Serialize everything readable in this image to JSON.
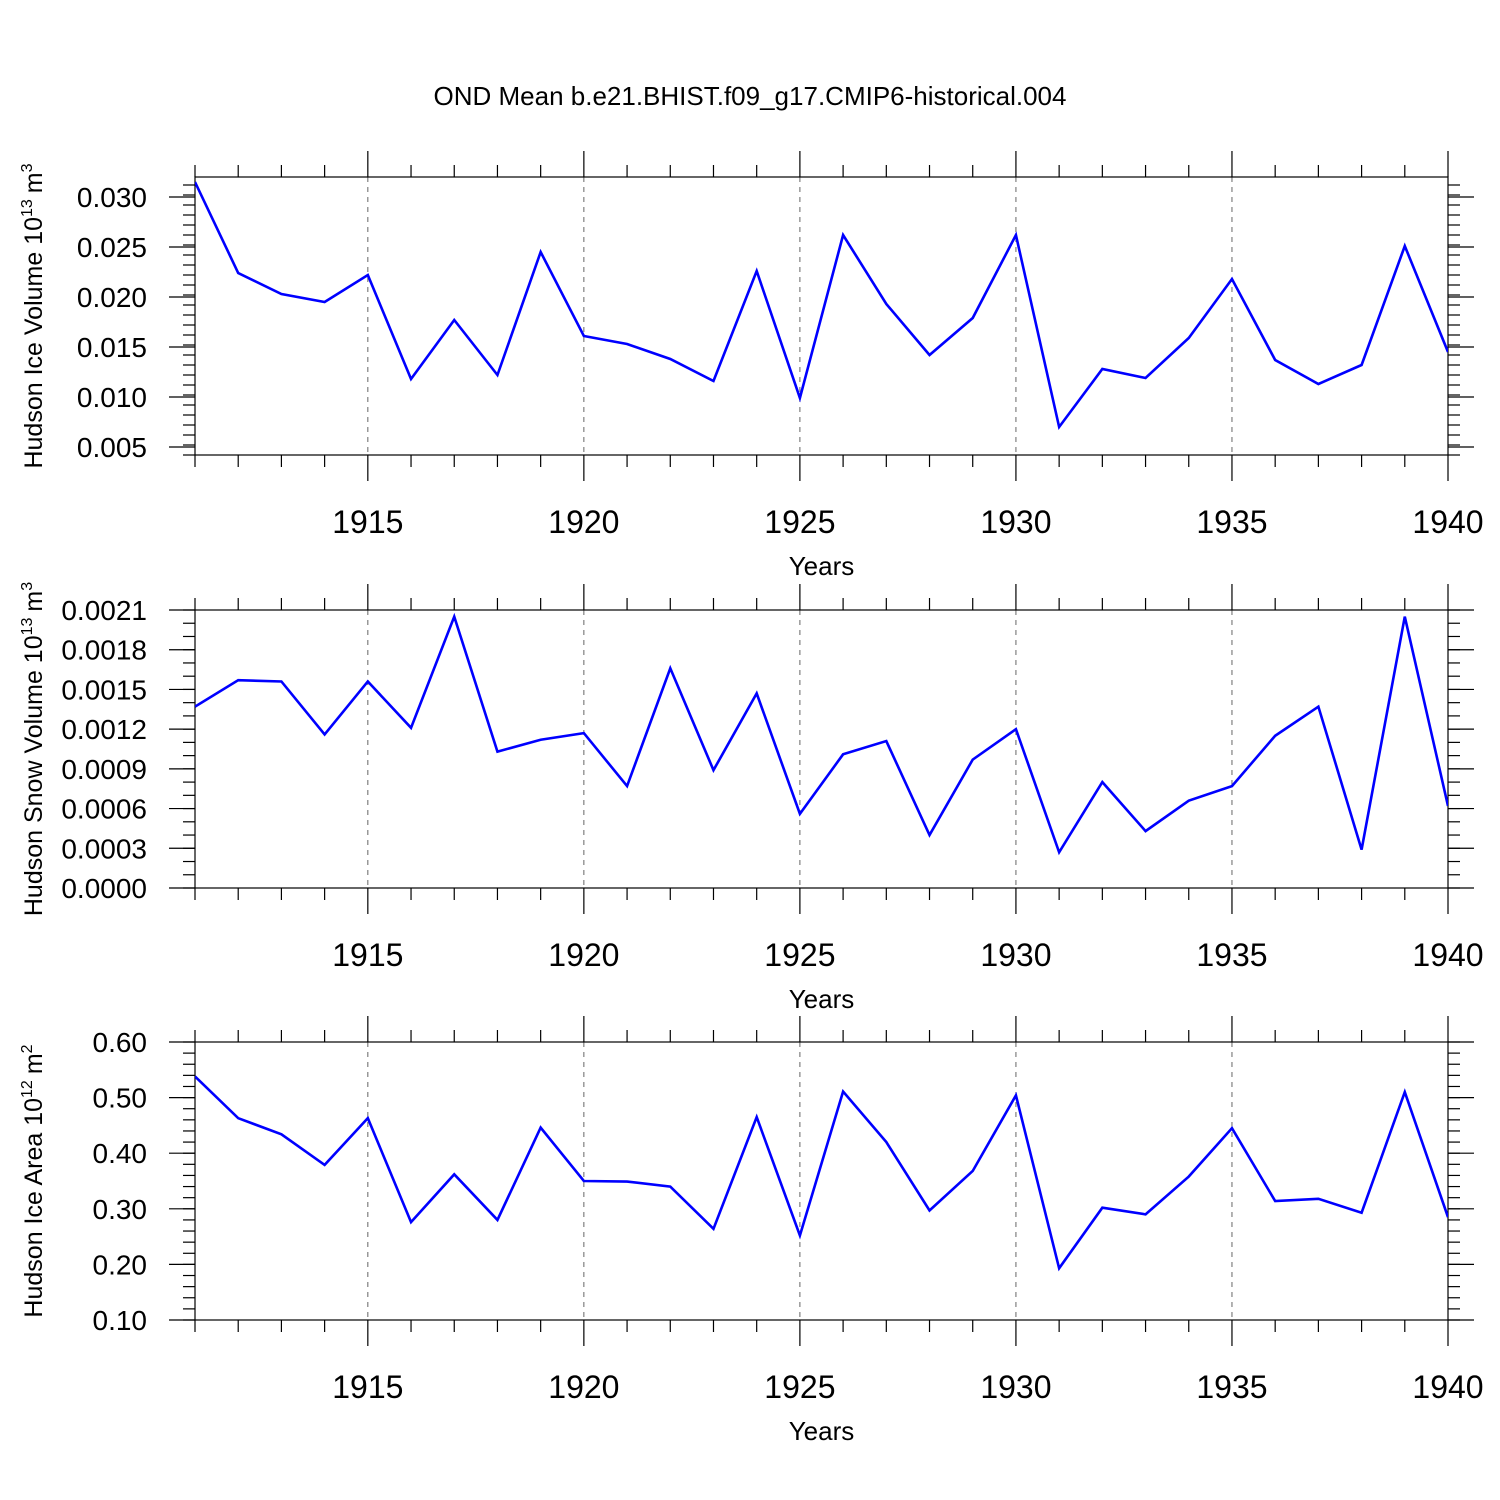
{
  "figure": {
    "title": "OND Mean b.e21.BHIST.f09_g17.CMIP6-historical.004",
    "line_color": "#0000ff"
  },
  "chart_data": [
    {
      "type": "line",
      "id": "ice-volume",
      "xlabel": "Years",
      "ylabel": "Hudson Ice Volume 10",
      "ylabel_exp": "13",
      "ylabel_unit": "m",
      "ylabel_unit_exp": "3",
      "xlim": [
        1911,
        1940
      ],
      "ylim": [
        0.0042,
        0.032
      ],
      "grid": "vertical dashed at major x ticks",
      "x_ticks": [
        1915,
        1920,
        1925,
        1930,
        1935,
        1940
      ],
      "y_ticks": [
        0.005,
        0.01,
        0.015,
        0.02,
        0.025,
        0.03
      ],
      "y_tick_labels": [
        "0.005",
        "0.010",
        "0.015",
        "0.020",
        "0.025",
        "0.030"
      ],
      "y_minor_step": 0.001,
      "x": [
        1911,
        1912,
        1913,
        1914,
        1915,
        1916,
        1917,
        1918,
        1919,
        1920,
        1921,
        1922,
        1923,
        1924,
        1925,
        1926,
        1927,
        1928,
        1929,
        1930,
        1931,
        1932,
        1933,
        1934,
        1935,
        1936,
        1937,
        1938,
        1939,
        1940
      ],
      "series": [
        {
          "name": "Hudson Ice Volume",
          "values": [
            0.0315,
            0.0224,
            0.0203,
            0.0195,
            0.0222,
            0.0118,
            0.0177,
            0.0122,
            0.0245,
            0.0161,
            0.0153,
            0.0138,
            0.0116,
            0.0226,
            0.0099,
            0.0262,
            0.0193,
            0.0142,
            0.0179,
            0.0262,
            0.007,
            0.0128,
            0.0119,
            0.0159,
            0.0218,
            0.0137,
            0.0113,
            0.0132,
            0.0251,
            0.0145
          ]
        }
      ]
    },
    {
      "type": "line",
      "id": "snow-volume",
      "xlabel": "Years",
      "ylabel": "Hudson Snow Volume 10",
      "ylabel_exp": "13",
      "ylabel_unit": "m",
      "ylabel_unit_exp": "3",
      "xlim": [
        1911,
        1940
      ],
      "ylim": [
        0.0,
        0.0021
      ],
      "grid": "vertical dashed at major x ticks",
      "x_ticks": [
        1915,
        1920,
        1925,
        1930,
        1935,
        1940
      ],
      "y_ticks": [
        0.0,
        0.0003,
        0.0006,
        0.0009,
        0.0012,
        0.0015,
        0.0018,
        0.0021
      ],
      "y_tick_labels": [
        "0.0000",
        "0.0003",
        "0.0006",
        "0.0009",
        "0.0012",
        "0.0015",
        "0.0018",
        "0.0021"
      ],
      "y_minor_step": 0.0001,
      "x": [
        1911,
        1912,
        1913,
        1914,
        1915,
        1916,
        1917,
        1918,
        1919,
        1920,
        1921,
        1922,
        1923,
        1924,
        1925,
        1926,
        1927,
        1928,
        1929,
        1930,
        1931,
        1932,
        1933,
        1934,
        1935,
        1936,
        1937,
        1938,
        1939,
        1940
      ],
      "series": [
        {
          "name": "Hudson Snow Volume",
          "values": [
            0.00137,
            0.00157,
            0.00156,
            0.00116,
            0.00156,
            0.00121,
            0.00205,
            0.00103,
            0.00112,
            0.00117,
            0.00077,
            0.00166,
            0.00089,
            0.00147,
            0.00056,
            0.00101,
            0.00111,
            0.0004,
            0.00097,
            0.0012,
            0.00027,
            0.0008,
            0.00043,
            0.00066,
            0.00077,
            0.00115,
            0.00137,
            0.00029,
            0.00205,
            0.00062
          ]
        }
      ]
    },
    {
      "type": "line",
      "id": "ice-area",
      "xlabel": "Years",
      "ylabel": "Hudson Ice Area 10",
      "ylabel_exp": "12",
      "ylabel_unit": "m",
      "ylabel_unit_exp": "2",
      "xlim": [
        1911,
        1940
      ],
      "ylim": [
        0.1,
        0.6
      ],
      "grid": "vertical dashed at major x ticks",
      "x_ticks": [
        1915,
        1920,
        1925,
        1930,
        1935,
        1940
      ],
      "y_ticks": [
        0.1,
        0.2,
        0.3,
        0.4,
        0.5,
        0.6
      ],
      "y_tick_labels": [
        "0.10",
        "0.20",
        "0.30",
        "0.40",
        "0.50",
        "0.60"
      ],
      "y_minor_step": 0.02,
      "x": [
        1911,
        1912,
        1913,
        1914,
        1915,
        1916,
        1917,
        1918,
        1919,
        1920,
        1921,
        1922,
        1923,
        1924,
        1925,
        1926,
        1927,
        1928,
        1929,
        1930,
        1931,
        1932,
        1933,
        1934,
        1935,
        1936,
        1937,
        1938,
        1939,
        1940
      ],
      "series": [
        {
          "name": "Hudson Ice Area",
          "values": [
            0.538,
            0.463,
            0.434,
            0.379,
            0.463,
            0.276,
            0.362,
            0.28,
            0.446,
            0.35,
            0.349,
            0.34,
            0.264,
            0.465,
            0.252,
            0.511,
            0.42,
            0.297,
            0.368,
            0.504,
            0.193,
            0.302,
            0.29,
            0.358,
            0.445,
            0.314,
            0.318,
            0.293,
            0.51,
            0.285
          ]
        }
      ]
    }
  ]
}
